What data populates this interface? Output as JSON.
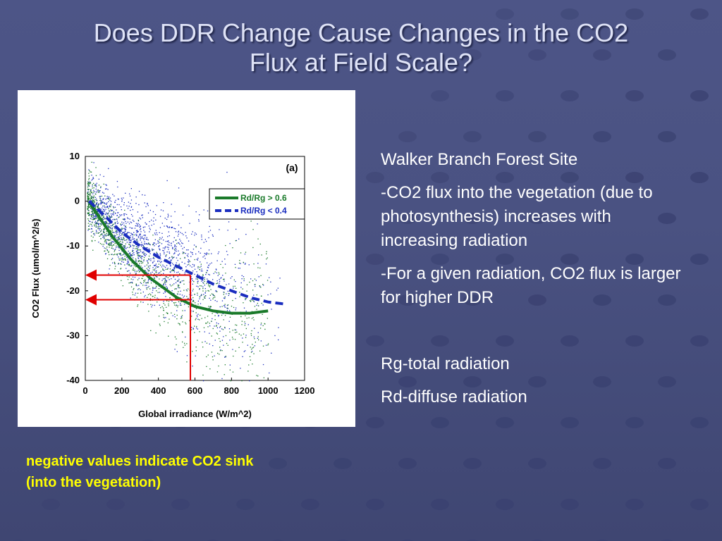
{
  "slide": {
    "title_line1": "Does DDR Change Cause Changes in the CO2",
    "title_line2": "Flux at Field Scale?",
    "site": " Walker Branch Forest Site",
    "point1": "-CO2 flux into the vegetation (due to photosynthesis) increases with increasing radiation",
    "point2": "-For a given radiation, CO2 flux is larger for higher DDR",
    "def_rg": "Rg-total radiation",
    "def_rd": "Rd-diffuse radiation",
    "note_line1": "negative values indicate CO2 sink",
    "note_line2": "(into the vegetation)"
  },
  "chart_data": {
    "type": "scatter",
    "panel_label": "(a)",
    "xlabel": "Global irradiance (W/m^2)",
    "ylabel": "CO2 Flux (umol/m^2/s)",
    "xlim": [
      0,
      1200
    ],
    "ylim": [
      -40,
      10
    ],
    "xticks": [
      0,
      200,
      400,
      600,
      800,
      1000,
      1200
    ],
    "yticks": [
      10,
      0,
      -10,
      -20,
      -30,
      -40
    ],
    "legend_position": "top-right",
    "series": [
      {
        "name": "Rd/Rg > 0.6",
        "color": "#1a7a2a",
        "style": "solid",
        "fit_curve": [
          [
            20,
            0
          ],
          [
            50,
            -2
          ],
          [
            100,
            -5
          ],
          [
            150,
            -8
          ],
          [
            200,
            -10.5
          ],
          [
            250,
            -13
          ],
          [
            300,
            -15
          ],
          [
            350,
            -17
          ],
          [
            400,
            -18.5
          ],
          [
            450,
            -20
          ],
          [
            500,
            -21.5
          ],
          [
            550,
            -22.5
          ],
          [
            600,
            -23.5
          ],
          [
            650,
            -24
          ],
          [
            700,
            -24.5
          ],
          [
            800,
            -25
          ],
          [
            900,
            -25
          ],
          [
            1000,
            -24.5
          ]
        ]
      },
      {
        "name": "Rd/Rg < 0.4",
        "color": "#1a2dbf",
        "style": "dashed",
        "fit_curve": [
          [
            20,
            0
          ],
          [
            100,
            -3
          ],
          [
            200,
            -7
          ],
          [
            300,
            -10
          ],
          [
            400,
            -12.5
          ],
          [
            500,
            -14.5
          ],
          [
            600,
            -16.5
          ],
          [
            700,
            -18.5
          ],
          [
            800,
            -20
          ],
          [
            900,
            -21.5
          ],
          [
            1000,
            -22.5
          ],
          [
            1100,
            -23
          ]
        ]
      }
    ],
    "reference_lines": {
      "color": "#e00000",
      "x": 575,
      "y_values": [
        -16.5,
        -22
      ]
    }
  },
  "colors": {
    "background": "#4a5282",
    "title": "#dfe3f7",
    "text": "#ffffff",
    "note": "#ffff00"
  }
}
